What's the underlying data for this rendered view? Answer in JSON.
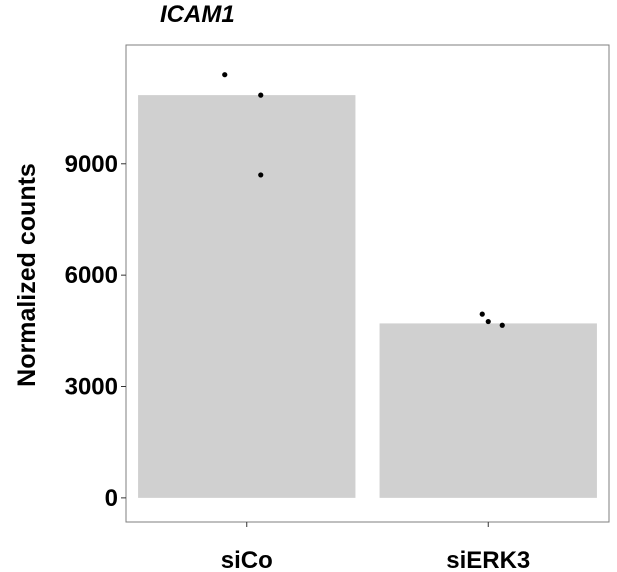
{
  "chart_data": {
    "type": "bar",
    "title": "ICAM1",
    "xlabel": "",
    "ylabel": "Normalized counts",
    "categories": [
      "siCo",
      "siERK3"
    ],
    "values": [
      10850,
      4700
    ],
    "points": [
      [
        11400,
        10850,
        8700
      ],
      [
        4950,
        4750,
        4650
      ]
    ],
    "yticks": [
      0,
      3000,
      6000,
      9000
    ],
    "ytick_labels": [
      "0",
      "3000",
      "6000",
      "9000"
    ],
    "ylim": [
      -650,
      12200
    ],
    "grid": false,
    "legend": "none",
    "colors": {
      "bar": "#d0d0d0",
      "point": "#000000",
      "frame": "#7f7f7f"
    }
  }
}
